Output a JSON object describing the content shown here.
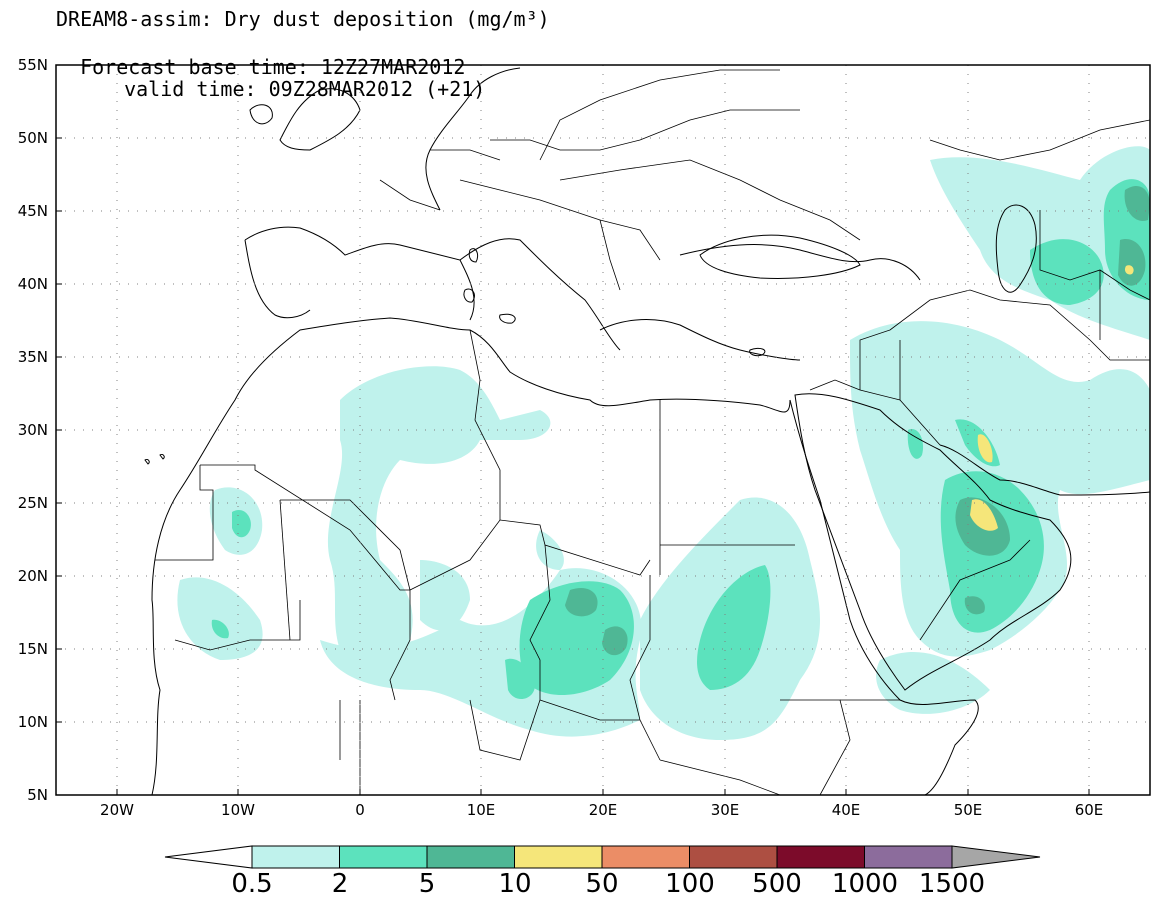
{
  "title": {
    "line1": "DREAM8-assim: Dry dust deposition (mg/m³)",
    "base_time": "Forecast base time: 12Z27MAR2012",
    "valid_time": "valid time: 09Z28MAR2012 (+21)"
  },
  "map": {
    "lon_range": [
      -25,
      65
    ],
    "lat_range": [
      5,
      55
    ],
    "lat_ticks": [
      "55N",
      "50N",
      "45N",
      "40N",
      "35N",
      "30N",
      "25N",
      "20N",
      "15N",
      "10N",
      "5N"
    ],
    "lon_ticks": [
      "20W",
      "10W",
      "0",
      "10E",
      "20E",
      "30E",
      "40E",
      "50E",
      "60E"
    ],
    "gridlines": "dotted"
  },
  "colorbar": {
    "labels": [
      "0.5",
      "2",
      "5",
      "10",
      "50",
      "100",
      "500",
      "1000",
      "1500"
    ],
    "colors": [
      "#bff2ec",
      "#5ce2bd",
      "#4fb795",
      "#f5e67a",
      "#eb8d66",
      "#ad4f42",
      "#7c0b2a",
      "#8c6c9c",
      "#a6a6a6"
    ]
  },
  "colors": {
    "land_outline": "#000000",
    "background": "#ffffff",
    "level1": "#bff2ec",
    "level2": "#5ce2bd",
    "level3": "#4fb795",
    "level4": "#f5e67a"
  }
}
